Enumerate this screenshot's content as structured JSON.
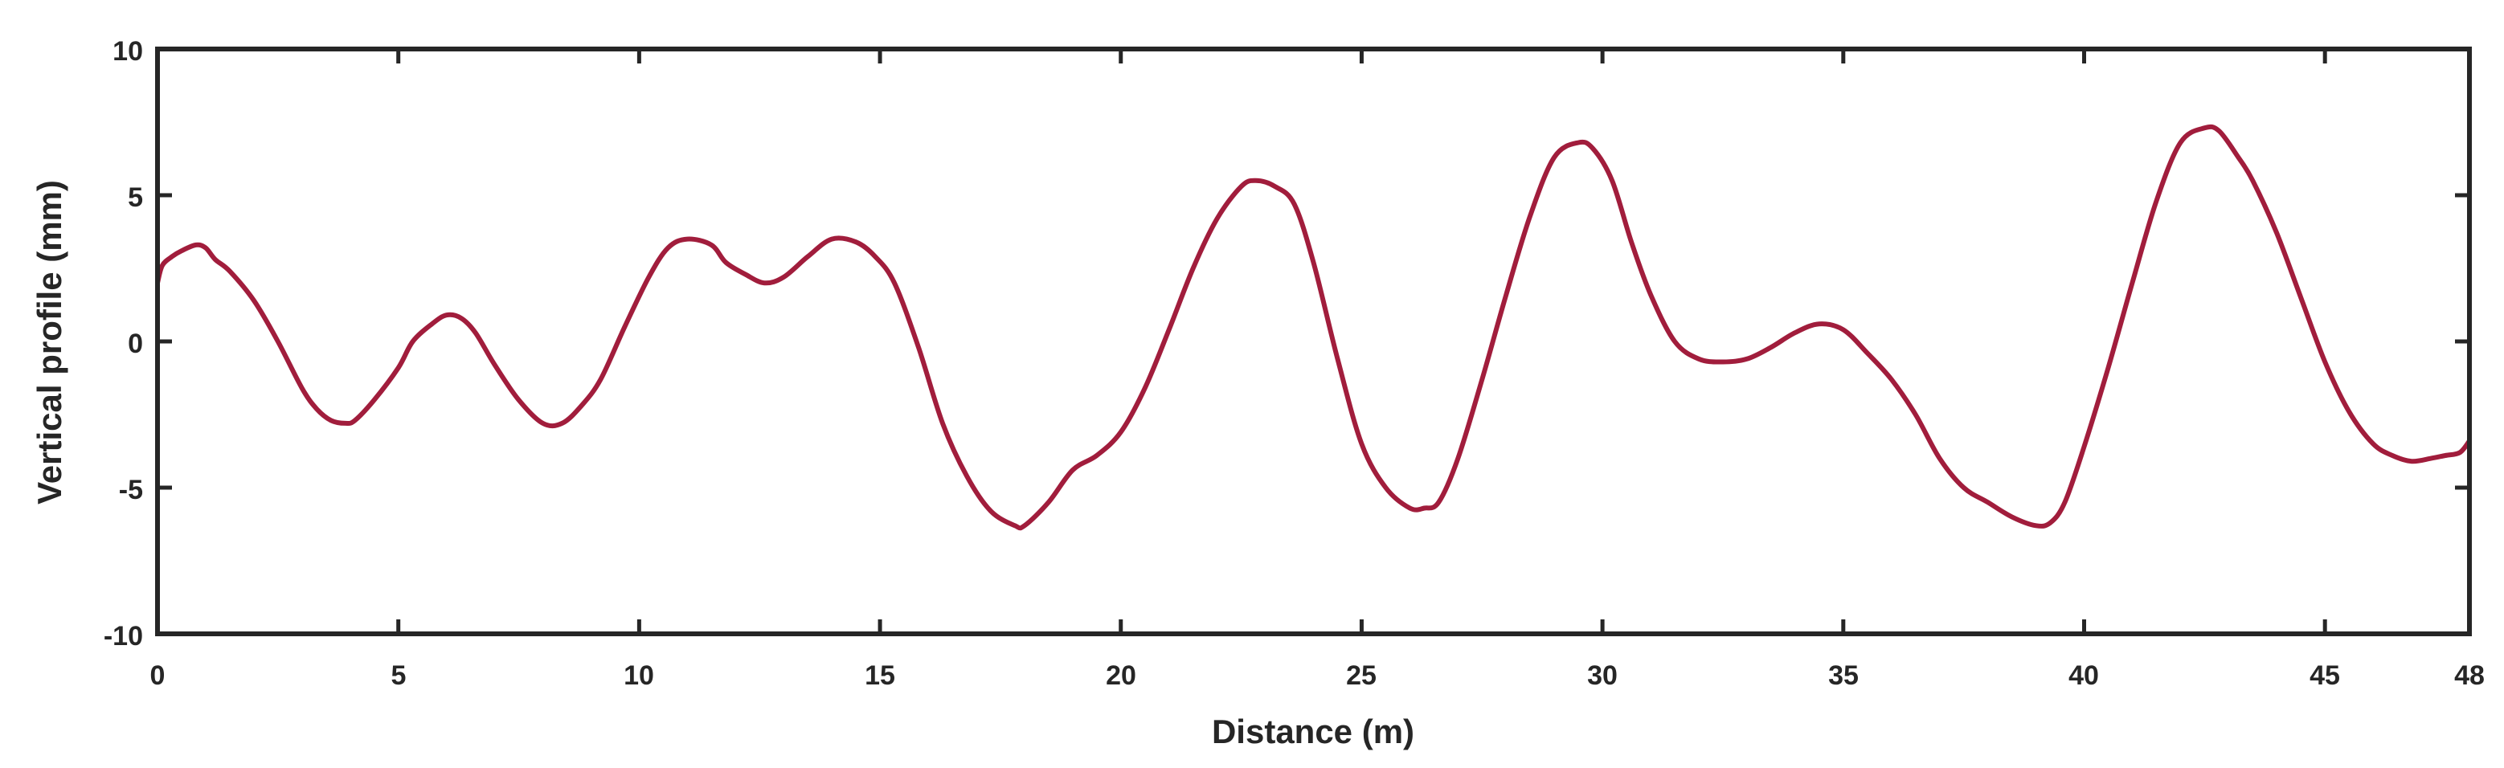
{
  "chart_data": {
    "type": "line",
    "title": "",
    "xlabel": "Distance (m)",
    "ylabel": "Vertical profile (mm)",
    "xlim": [
      0,
      48
    ],
    "ylim": [
      -10,
      10
    ],
    "x_ticks": [
      0,
      5,
      10,
      15,
      20,
      25,
      30,
      35,
      40,
      45,
      48
    ],
    "x_tick_labels": [
      "0",
      "5",
      "10",
      "15",
      "20",
      "25",
      "30",
      "35",
      "40",
      "45",
      "48"
    ],
    "y_ticks": [
      10,
      5,
      0,
      -5,
      -10
    ],
    "y_tick_labels": [
      "10",
      "5",
      "0",
      "-5",
      "-10"
    ],
    "grid": false,
    "line_color": "#a11d3c",
    "axis_color": "#262626",
    "series": [
      {
        "x": [
          0,
          0.1,
          0.3,
          0.5,
          0.8,
          1.0,
          1.2,
          1.5,
          2.0,
          2.5,
          3.0,
          3.3,
          3.6,
          3.9,
          4.1,
          4.5,
          5.0,
          5.3,
          5.7,
          6.0,
          6.3,
          6.6,
          7.0,
          7.5,
          8.0,
          8.4,
          8.8,
          9.2,
          9.7,
          10.2,
          10.6,
          11.0,
          11.5,
          11.8,
          12.2,
          12.6,
          13.0,
          13.5,
          14.0,
          14.5,
          14.9,
          15.3,
          15.8,
          16.3,
          16.8,
          17.3,
          17.8,
          18.0,
          18.5,
          19.0,
          19.5,
          20.0,
          20.5,
          21.0,
          21.5,
          22.0,
          22.5,
          22.8,
          23.2,
          23.6,
          24.0,
          24.5,
          25.0,
          25.5,
          26.0,
          26.3,
          26.6,
          27.0,
          27.5,
          28.0,
          28.5,
          29.0,
          29.5,
          29.8,
          30.2,
          30.6,
          31.0,
          31.5,
          32.0,
          32.5,
          33.0,
          33.5,
          34.0,
          34.5,
          35.0,
          35.5,
          36.0,
          36.5,
          37.0,
          37.5,
          38.0,
          38.5,
          39.0,
          39.3,
          39.6,
          40.0,
          40.5,
          41.0,
          41.5,
          42.0,
          42.5,
          42.8,
          43.2,
          43.5,
          44.0,
          44.5,
          45.0,
          45.5,
          46.0,
          46.4,
          46.8,
          47.2,
          47.5,
          47.8,
          48.0
        ],
        "y": [
          2.0,
          2.6,
          2.9,
          3.1,
          3.3,
          3.2,
          2.8,
          2.4,
          1.4,
          0.0,
          -1.6,
          -2.3,
          -2.7,
          -2.8,
          -2.7,
          -2.0,
          -0.9,
          0.0,
          0.6,
          0.9,
          0.8,
          0.3,
          -0.8,
          -2.0,
          -2.8,
          -2.8,
          -2.2,
          -1.3,
          0.5,
          2.2,
          3.2,
          3.5,
          3.3,
          2.7,
          2.3,
          2.0,
          2.2,
          2.9,
          3.5,
          3.4,
          2.9,
          2.0,
          -0.2,
          -2.8,
          -4.6,
          -5.8,
          -6.3,
          -6.3,
          -5.5,
          -4.4,
          -3.9,
          -3.1,
          -1.6,
          0.4,
          2.5,
          4.2,
          5.3,
          5.5,
          5.3,
          4.7,
          2.7,
          -0.6,
          -3.5,
          -5.0,
          -5.7,
          -5.7,
          -5.5,
          -4.0,
          -1.3,
          1.6,
          4.3,
          6.3,
          6.8,
          6.6,
          5.5,
          3.4,
          1.6,
          0.0,
          -0.6,
          -0.7,
          -0.6,
          -0.2,
          0.3,
          0.6,
          0.4,
          -0.4,
          -1.3,
          -2.5,
          -4.0,
          -5.0,
          -5.5,
          -6.0,
          -6.3,
          -6.2,
          -5.5,
          -3.6,
          -0.9,
          2.0,
          4.8,
          6.8,
          7.3,
          7.2,
          6.3,
          5.5,
          3.7,
          1.5,
          -0.7,
          -2.4,
          -3.5,
          -3.9,
          -4.1,
          -4.0,
          -3.9,
          -3.8,
          -3.4
        ]
      }
    ]
  }
}
